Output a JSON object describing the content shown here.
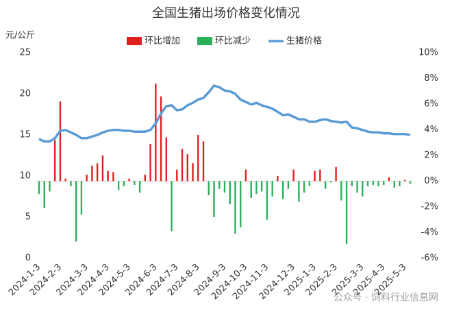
{
  "chart_data": {
    "type": "bar-line",
    "title": "全国生猪出场价格变化情况",
    "y_label": "元/公斤",
    "categories": [
      "2024-1-3",
      null,
      null,
      null,
      "2024-2-3",
      null,
      null,
      null,
      null,
      "2024-3-3",
      null,
      null,
      null,
      "2024-4-3",
      null,
      null,
      null,
      "2024-5-3",
      null,
      null,
      null,
      null,
      "2024-6-3",
      null,
      null,
      null,
      "2024-7-3",
      null,
      null,
      null,
      "2024-8-3",
      null,
      null,
      null,
      null,
      "2024-9-3",
      null,
      null,
      null,
      "2024-10-3",
      null,
      null,
      null,
      "2024-11-3",
      null,
      null,
      null,
      null,
      "2024-12-3",
      null,
      null,
      null,
      "2025-1-3",
      null,
      null,
      null,
      "2025-2-3",
      null,
      null,
      null,
      null,
      "2025-3-3",
      null,
      null,
      null,
      "2025-4-3",
      null,
      null,
      null,
      "2025-5-3",
      null
    ],
    "series": [
      {
        "name": "环比增加",
        "color": "#e02020",
        "axis": "y2",
        "kind": "bar",
        "values": [
          null,
          null,
          null,
          3.2,
          6.2,
          0.2,
          null,
          null,
          null,
          0.5,
          1.2,
          1.4,
          2.0,
          0.8,
          0.7,
          null,
          null,
          0.2,
          null,
          null,
          0.5,
          2.9,
          7.6,
          6.6,
          3.4,
          null,
          0.9,
          2.5,
          2.1,
          1.4,
          3.6,
          3.1,
          null,
          null,
          null,
          null,
          null,
          null,
          null,
          0.9,
          null,
          null,
          null,
          null,
          null,
          0.4,
          null,
          null,
          0.9,
          null,
          null,
          null,
          0.8,
          0.9,
          null,
          null,
          1.1,
          null,
          null,
          null,
          null,
          null,
          null,
          null,
          null,
          null,
          0.3,
          null,
          null,
          0.1,
          null
        ]
      },
      {
        "name": "环比减少",
        "color": "#2bb05a",
        "axis": "y2",
        "kind": "bar",
        "values": [
          -1.0,
          -2.1,
          -0.8,
          null,
          null,
          null,
          -0.4,
          -4.7,
          -2.6,
          null,
          null,
          null,
          null,
          null,
          null,
          -0.7,
          -0.4,
          null,
          -0.3,
          -0.9,
          null,
          null,
          null,
          null,
          null,
          -3.9,
          null,
          null,
          null,
          null,
          null,
          null,
          -1.1,
          -2.8,
          -0.6,
          -0.9,
          -1.8,
          -4.1,
          -3.6,
          null,
          -1.3,
          -1.0,
          -0.8,
          -3.0,
          -1.2,
          null,
          -1.4,
          -0.6,
          null,
          -1.6,
          -0.9,
          -0.4,
          null,
          null,
          -0.6,
          -0.1,
          null,
          -1.5,
          -4.9,
          -0.4,
          -0.9,
          -1.2,
          -0.4,
          -0.3,
          -0.4,
          -0.3,
          null,
          -0.5,
          -0.4,
          null,
          -0.2
        ]
      },
      {
        "name": "生猪价格",
        "color": "#5b9bd5",
        "axis": "y",
        "kind": "line",
        "values": [
          14.5,
          14.2,
          14.2,
          14.6,
          15.5,
          15.6,
          15.3,
          15.0,
          14.6,
          14.6,
          14.8,
          15.0,
          15.3,
          15.5,
          15.6,
          15.6,
          15.5,
          15.5,
          15.4,
          15.4,
          15.4,
          15.6,
          16.4,
          17.6,
          18.5,
          18.6,
          18.0,
          18.1,
          18.6,
          18.9,
          19.3,
          19.5,
          20.2,
          21.0,
          20.8,
          20.4,
          20.3,
          20.0,
          19.3,
          19.0,
          18.7,
          18.9,
          18.6,
          18.4,
          18.2,
          17.8,
          17.4,
          17.5,
          17.2,
          16.9,
          16.9,
          16.6,
          16.6,
          16.8,
          16.9,
          16.7,
          16.6,
          16.5,
          16.6,
          15.9,
          15.8,
          15.6,
          15.4,
          15.3,
          15.3,
          15.2,
          15.2,
          15.1,
          15.1,
          15.1,
          15.0
        ]
      }
    ],
    "ylim": [
      0,
      25
    ],
    "yticks": [
      0,
      5,
      10,
      15,
      20,
      25
    ],
    "y2lim": [
      -6,
      10
    ],
    "y2ticks": [
      {
        "value": -6,
        "label": "-6%"
      },
      {
        "value": -4,
        "label": "-4%"
      },
      {
        "value": -2,
        "label": "-2%"
      },
      {
        "value": 0,
        "label": "0%"
      },
      {
        "value": 2,
        "label": "2%"
      },
      {
        "value": 4,
        "label": "4%"
      },
      {
        "value": 6,
        "label": "6%"
      },
      {
        "value": 8,
        "label": "8%"
      },
      {
        "value": 10,
        "label": "10%"
      }
    ],
    "legend": "top",
    "watermark": "公众号 · 饲料行业信息网"
  }
}
